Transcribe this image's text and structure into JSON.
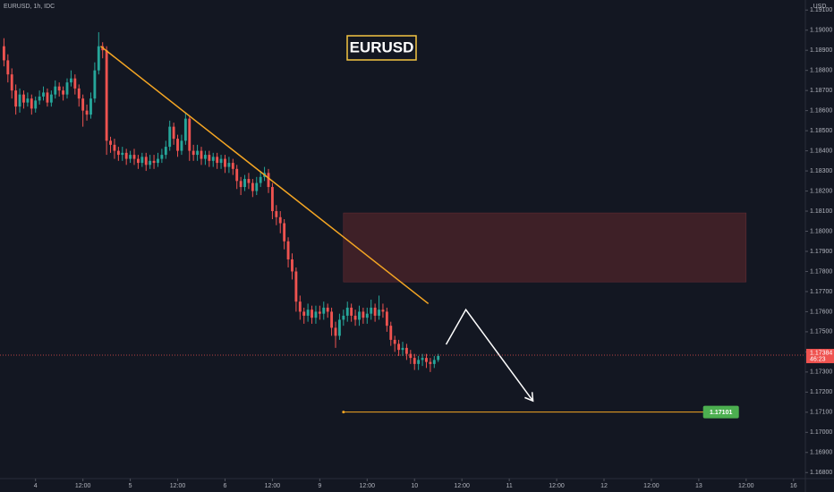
{
  "chart_data": {
    "type": "candlestick",
    "symbol": "EURUSD, 1h, IDC",
    "currency": "USD",
    "title": "EURUSD",
    "up_color": "#26a69a",
    "down_color": "#ef5350",
    "grid": false,
    "xlim": [
      -1,
      203
    ],
    "xticks": [
      {
        "value": 8,
        "label": "4"
      },
      {
        "value": 20,
        "label": "12:00"
      },
      {
        "value": 32,
        "label": "5"
      },
      {
        "value": 44,
        "label": "12:00"
      },
      {
        "value": 56,
        "label": "6"
      },
      {
        "value": 68,
        "label": "12:00"
      },
      {
        "value": 80,
        "label": "9"
      },
      {
        "value": 92,
        "label": "12:00"
      },
      {
        "value": 104,
        "label": "10"
      },
      {
        "value": 116,
        "label": "12:00"
      },
      {
        "value": 128,
        "label": "11"
      },
      {
        "value": 140,
        "label": "12:00"
      },
      {
        "value": 152,
        "label": "12"
      },
      {
        "value": 164,
        "label": "12:00"
      },
      {
        "value": 176,
        "label": "13"
      },
      {
        "value": 188,
        "label": "12:00"
      },
      {
        "value": 200,
        "label": "16"
      }
    ],
    "ylim": [
      1.1677,
      1.1915
    ],
    "yticks": [
      {
        "value": 1.168,
        "label": "1.16800"
      },
      {
        "value": 1.169,
        "label": "1.16900"
      },
      {
        "value": 1.17,
        "label": "1.17000"
      },
      {
        "value": 1.171,
        "label": "1.17100"
      },
      {
        "value": 1.172,
        "label": "1.17200"
      },
      {
        "value": 1.173,
        "label": "1.17300"
      },
      {
        "value": 1.174,
        "label": "1.17400"
      },
      {
        "value": 1.175,
        "label": "1.17500"
      },
      {
        "value": 1.176,
        "label": "1.17600"
      },
      {
        "value": 1.177,
        "label": "1.17700"
      },
      {
        "value": 1.178,
        "label": "1.17800"
      },
      {
        "value": 1.179,
        "label": "1.17900"
      },
      {
        "value": 1.18,
        "label": "1.18000"
      },
      {
        "value": 1.181,
        "label": "1.18100"
      },
      {
        "value": 1.182,
        "label": "1.18200"
      },
      {
        "value": 1.183,
        "label": "1.18300"
      },
      {
        "value": 1.184,
        "label": "1.18400"
      },
      {
        "value": 1.185,
        "label": "1.18500"
      },
      {
        "value": 1.186,
        "label": "1.18600"
      },
      {
        "value": 1.187,
        "label": "1.18700"
      },
      {
        "value": 1.188,
        "label": "1.18800"
      },
      {
        "value": 1.189,
        "label": "1.18900"
      },
      {
        "value": 1.19,
        "label": "1.19000"
      },
      {
        "value": 1.191,
        "label": "1.19100"
      }
    ],
    "open": [
      1.1892,
      1.1885,
      1.1878,
      1.187,
      1.1862,
      1.1868,
      1.1864,
      1.1866,
      1.1861,
      1.1865,
      1.1867,
      1.1869,
      1.1864,
      1.1868,
      1.1872,
      1.187,
      1.1868,
      1.1874,
      1.1876,
      1.1871,
      1.1866,
      1.186,
      1.1858,
      1.1866,
      1.188,
      1.1892,
      1.189,
      1.1845,
      1.1843,
      1.184,
      1.1838,
      1.1839,
      1.1836,
      1.1838,
      1.1836,
      1.1834,
      1.1837,
      1.1833,
      1.1835,
      1.1834,
      1.1836,
      1.1838,
      1.1842,
      1.1852,
      1.1846,
      1.184,
      1.1845,
      1.1856,
      1.184,
      1.1838,
      1.184,
      1.1836,
      1.1838,
      1.1835,
      1.1837,
      1.1834,
      1.1836,
      1.1832,
      1.1834,
      1.1831,
      1.1825,
      1.1822,
      1.1826,
      1.1824,
      1.182,
      1.1824,
      1.1827,
      1.1829,
      1.1822,
      1.181,
      1.1807,
      1.1804,
      1.1795,
      1.1786,
      1.178,
      1.1765,
      1.176,
      1.1758,
      1.1761,
      1.1757,
      1.176,
      1.1759,
      1.1762,
      1.176,
      1.1752,
      1.1748,
      1.1756,
      1.1758,
      1.1762,
      1.1758,
      1.1756,
      1.176,
      1.1757,
      1.1759,
      1.1762,
      1.1758,
      1.1761,
      1.176,
      1.1753,
      1.1746,
      1.1744,
      1.1741,
      1.1742,
      1.1739,
      1.1737,
      1.1734,
      1.1736,
      1.1737,
      1.1735,
      1.1734,
      1.1736
    ],
    "high": [
      1.1896,
      1.1888,
      1.1881,
      1.1873,
      1.1871,
      1.187,
      1.1869,
      1.1868,
      1.1867,
      1.187,
      1.1872,
      1.1871,
      1.187,
      1.1875,
      1.1874,
      1.1872,
      1.1876,
      1.188,
      1.1878,
      1.1873,
      1.1868,
      1.1863,
      1.1869,
      1.1884,
      1.1899,
      1.1894,
      1.1892,
      1.1847,
      1.1846,
      1.1842,
      1.1842,
      1.1841,
      1.184,
      1.1841,
      1.1838,
      1.1839,
      1.1839,
      1.1838,
      1.1838,
      1.1839,
      1.1841,
      1.1845,
      1.1855,
      1.1854,
      1.1848,
      1.1848,
      1.1859,
      1.1857,
      1.1843,
      1.1843,
      1.1842,
      1.184,
      1.184,
      1.1839,
      1.1839,
      1.1838,
      1.1838,
      1.1837,
      1.1836,
      1.1833,
      1.1827,
      1.1828,
      1.1829,
      1.1826,
      1.1827,
      1.183,
      1.1832,
      1.1831,
      1.1824,
      1.1813,
      1.181,
      1.1806,
      1.1797,
      1.1789,
      1.1782,
      1.1768,
      1.1762,
      1.1764,
      1.1763,
      1.1763,
      1.1763,
      1.1765,
      1.1764,
      1.1762,
      1.1755,
      1.1759,
      1.1761,
      1.1765,
      1.1764,
      1.1761,
      1.1763,
      1.1762,
      1.1762,
      1.1766,
      1.1764,
      1.1768,
      1.1764,
      1.1762,
      1.1755,
      1.1748,
      1.1746,
      1.1745,
      1.1744,
      1.1741,
      1.1739,
      1.1738,
      1.1739,
      1.1739,
      1.1737,
      1.1738,
      1.1739
    ],
    "low": [
      1.1882,
      1.1874,
      1.1866,
      1.1858,
      1.1859,
      1.1861,
      1.1862,
      1.1858,
      1.1859,
      1.1863,
      1.1865,
      1.1862,
      1.1862,
      1.1866,
      1.1867,
      1.1865,
      1.1866,
      1.1872,
      1.1868,
      1.1862,
      1.1852,
      1.1855,
      1.1856,
      1.1864,
      1.1878,
      1.1886,
      1.1838,
      1.1839,
      1.1836,
      1.1835,
      1.1835,
      1.1833,
      1.1834,
      1.1833,
      1.1831,
      1.1832,
      1.183,
      1.1831,
      1.1831,
      1.1832,
      1.1834,
      1.1836,
      1.184,
      1.1843,
      1.1837,
      1.1838,
      1.1843,
      1.1835,
      1.1835,
      1.1835,
      1.1833,
      1.1833,
      1.1832,
      1.1832,
      1.1831,
      1.1831,
      1.1829,
      1.1829,
      1.1828,
      1.1821,
      1.1818,
      1.182,
      1.1821,
      1.1817,
      1.1818,
      1.1822,
      1.1825,
      1.1819,
      1.1806,
      1.1803,
      1.1799,
      1.1791,
      1.1782,
      1.1776,
      1.176,
      1.1756,
      1.1754,
      1.1755,
      1.1754,
      1.1754,
      1.1756,
      1.1756,
      1.1757,
      1.1748,
      1.1742,
      1.1746,
      1.1753,
      1.1755,
      1.1755,
      1.1753,
      1.1753,
      1.1754,
      1.1754,
      1.1756,
      1.1755,
      1.1756,
      1.1757,
      1.175,
      1.1743,
      1.174,
      1.1738,
      1.1738,
      1.1736,
      1.1734,
      1.1731,
      1.1731,
      1.1733,
      1.1732,
      1.173,
      1.1732,
      1.1735
    ],
    "close": [
      1.1885,
      1.1878,
      1.187,
      1.1862,
      1.1868,
      1.1864,
      1.1866,
      1.1861,
      1.1865,
      1.1867,
      1.1869,
      1.1864,
      1.1868,
      1.1872,
      1.187,
      1.1868,
      1.1874,
      1.1876,
      1.1871,
      1.1866,
      1.186,
      1.1858,
      1.1866,
      1.188,
      1.1892,
      1.189,
      1.1845,
      1.1843,
      1.184,
      1.1838,
      1.1839,
      1.1836,
      1.1838,
      1.1836,
      1.1834,
      1.1837,
      1.1833,
      1.1835,
      1.1834,
      1.1836,
      1.1838,
      1.1842,
      1.1852,
      1.1846,
      1.184,
      1.1845,
      1.1856,
      1.184,
      1.1838,
      1.184,
      1.1836,
      1.1838,
      1.1835,
      1.1837,
      1.1834,
      1.1836,
      1.1832,
      1.1834,
      1.1831,
      1.1825,
      1.1822,
      1.1826,
      1.1824,
      1.182,
      1.1824,
      1.1827,
      1.1829,
      1.1822,
      1.181,
      1.1807,
      1.1804,
      1.1795,
      1.1786,
      1.178,
      1.1765,
      1.176,
      1.1758,
      1.1761,
      1.1757,
      1.176,
      1.1759,
      1.1762,
      1.176,
      1.1752,
      1.1748,
      1.1756,
      1.1758,
      1.1762,
      1.1758,
      1.1756,
      1.176,
      1.1757,
      1.1759,
      1.1762,
      1.1758,
      1.1761,
      1.176,
      1.1753,
      1.1746,
      1.1744,
      1.1741,
      1.1742,
      1.1739,
      1.1737,
      1.1734,
      1.1736,
      1.1737,
      1.1735,
      1.1734,
      1.1736,
      1.1738
    ],
    "last_price": 1.17384,
    "countdown": "46:23",
    "trendline": {
      "x": [
        24.5,
        107.5
      ],
      "y": [
        1.1892,
        1.1764
      ],
      "color": "#f5a623"
    },
    "zone": {
      "x": [
        86,
        188
      ],
      "y": [
        1.17748,
        1.18091
      ],
      "color": "#4a2329"
    },
    "arrow": {
      "x": [
        112,
        117,
        134
      ],
      "y": [
        1.17437,
        1.1761,
        1.17156
      ],
      "color": "#ffffff"
    },
    "target": {
      "x": [
        86,
        178
      ],
      "value": 1.17101,
      "color": "#f5a623",
      "label_color": "#4caf50"
    }
  }
}
